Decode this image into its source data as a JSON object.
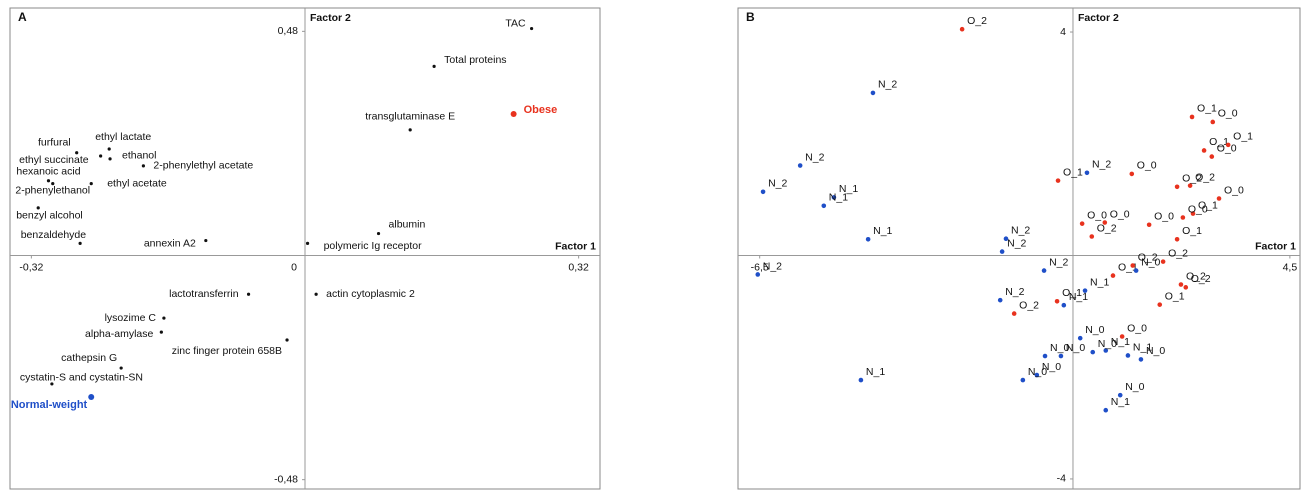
{
  "chart_data": [
    {
      "type": "scatter",
      "panel": "A",
      "xlabel": "Factor 1",
      "ylabel": "Factor 2",
      "xlim": [
        -0.345,
        0.345
      ],
      "ylim": [
        -0.5,
        0.53
      ],
      "xticks": [
        {
          "value": -0.32,
          "label": "-0,32"
        },
        0,
        {
          "value": 0.32,
          "label": "0,32"
        }
      ],
      "yticks": [
        {
          "value": 0.48,
          "label": "0,48"
        },
        {
          "value": -0.48,
          "label": "-0,48"
        }
      ],
      "series": [
        {
          "color": "#111111",
          "labels": [
            "TAC",
            "Total proteins",
            "transglutaminase E",
            "furfural",
            "ethyl lactate",
            "ethyl succinate",
            "ethanol",
            "2-phenylethyl acetate",
            "hexanoic acid",
            "2-phenylethanol",
            "ethyl acetate",
            "benzyl alcohol",
            "albumin",
            "benzaldehyde",
            "annexin A2",
            "polymeric Ig receptor",
            "lactotransferrin",
            "actin cytoplasmic 2",
            "lysozime C",
            "alpha-amylase",
            "zinc finger protein 658B",
            "cathepsin G",
            "cystatin-S and cystatin-SN"
          ],
          "x": [
            0.265,
            0.151,
            0.123,
            -0.267,
            -0.229,
            -0.239,
            -0.228,
            -0.189,
            -0.3,
            -0.295,
            -0.25,
            -0.312,
            0.086,
            -0.263,
            -0.116,
            0.003,
            -0.066,
            0.013,
            -0.165,
            -0.168,
            -0.021,
            -0.215,
            -0.296
          ],
          "y": [
            0.486,
            0.405,
            0.269,
            0.22,
            0.228,
            0.213,
            0.207,
            0.192,
            0.16,
            0.154,
            0.154,
            0.102,
            0.047,
            0.026,
            0.032,
            0.026,
            -0.083,
            -0.083,
            -0.134,
            -0.164,
            -0.181,
            -0.241,
            -0.275
          ]
        },
        {
          "color": "#e8321e",
          "labels": [
            "Obese"
          ],
          "x": [
            0.244
          ],
          "y": [
            0.303
          ]
        },
        {
          "color": "#1f4fc8",
          "labels": [
            "Normal-weight"
          ],
          "x": [
            -0.25
          ],
          "y": [
            -0.303
          ]
        }
      ]
    },
    {
      "type": "scatter",
      "panel": "B",
      "xlabel": "Factor 1",
      "ylabel": "Factor 2",
      "xlim": [
        -6.95,
        4.71
      ],
      "ylim": [
        -4.18,
        4.43
      ],
      "xticks": [
        {
          "value": -6.5,
          "label": "-6,5"
        },
        {
          "value": 4.5,
          "label": "4,5"
        }
      ],
      "yticks": [
        4,
        -4
      ],
      "series": [
        {
          "color": "#e8321e",
          "labels": [
            "O_2",
            "O_1",
            "O_0",
            "O_1",
            "O_1",
            "O_0",
            "O_1",
            "O_0",
            "O_2",
            "O_2",
            "O_0",
            "O_0",
            "O_0",
            "O_0",
            "O_1",
            "O_0",
            "O_2",
            "O_1",
            "O_1",
            "O_2",
            "O_2",
            "O_2",
            "O_2",
            "O_1",
            "O_1",
            "O_2",
            "O_0"
          ],
          "x": [
            -2.3,
            2.47,
            2.9,
            2.72,
            3.22,
            2.88,
            -0.31,
            1.22,
            2.16,
            2.43,
            3.03,
            0.19,
            0.66,
            1.58,
            2.49,
            2.28,
            0.39,
            2.16,
            0.83,
            1.24,
            1.87,
            2.24,
            2.34,
            1.8,
            -0.33,
            -1.22,
            1.02
          ],
          "y": [
            4.05,
            2.48,
            2.39,
            1.88,
            1.98,
            1.77,
            1.34,
            1.46,
            1.23,
            1.25,
            1.02,
            0.57,
            0.59,
            0.55,
            0.75,
            0.68,
            0.34,
            0.29,
            -0.36,
            -0.18,
            -0.11,
            -0.52,
            -0.57,
            -0.88,
            -0.82,
            -1.04,
            -1.45
          ]
        },
        {
          "color": "#1f4fc8",
          "labels": [
            "N_2",
            "N_2",
            "N_2",
            "N_1",
            "N_1",
            "N_1",
            "N_2",
            "N_2",
            "N_2",
            "N_2",
            "N_2",
            "N_0",
            "N_1",
            "N_1",
            "N_2",
            "N_0",
            "N_0",
            "N_0",
            "N_1",
            "N_0",
            "N_1",
            "N_0",
            "N_0",
            "N_0",
            "N_1",
            "N_0",
            "N_1"
          ],
          "x": [
            -4.15,
            -5.66,
            -6.43,
            -4.96,
            -5.17,
            -4.25,
            0.29,
            -1.39,
            -1.47,
            -0.6,
            -6.54,
            1.31,
            0.25,
            -0.19,
            -1.51,
            0.15,
            -0.58,
            -0.25,
            0.68,
            0.41,
            1.14,
            1.41,
            -0.75,
            -1.04,
            -4.4,
            0.98,
            0.68
          ],
          "y": [
            2.91,
            1.61,
            1.14,
            1.04,
            0.89,
            0.29,
            1.48,
            0.3,
            0.07,
            -0.27,
            -0.34,
            -0.27,
            -0.63,
            -0.89,
            -0.8,
            -1.48,
            -1.8,
            -1.8,
            -1.7,
            -1.73,
            -1.79,
            -1.86,
            -2.14,
            -2.23,
            -2.23,
            -2.5,
            -2.77
          ]
        }
      ]
    }
  ]
}
